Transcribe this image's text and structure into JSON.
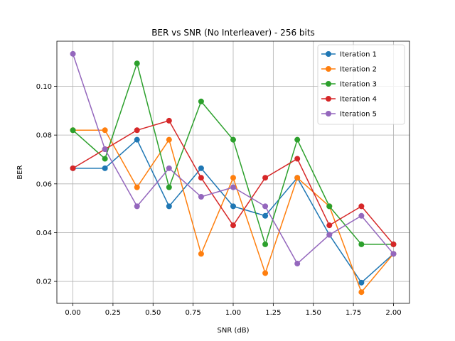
{
  "chart_data": {
    "type": "line",
    "title": "BER vs SNR (No Interleaver) - 256 bits",
    "xlabel": "SNR (dB)",
    "ylabel": "BER",
    "xlim": [
      -0.1,
      2.1
    ],
    "ylim": [
      0.011,
      0.1185
    ],
    "xticks": [
      0.0,
      0.25,
      0.5,
      0.75,
      1.0,
      1.25,
      1.5,
      1.75,
      2.0
    ],
    "xtick_labels": [
      "0.00",
      "0.25",
      "0.50",
      "0.75",
      "1.00",
      "1.25",
      "1.50",
      "1.75",
      "2.00"
    ],
    "yticks": [
      0.02,
      0.04,
      0.06,
      0.08,
      0.1
    ],
    "ytick_labels": [
      "0.02",
      "0.04",
      "0.06",
      "0.08",
      "0.10"
    ],
    "grid": true,
    "legend_position": "top-right",
    "x": [
      0.0,
      0.2,
      0.4,
      0.6,
      0.8,
      1.0,
      1.2,
      1.4,
      1.6,
      1.8,
      2.0
    ],
    "series": [
      {
        "name": "Iteration 1",
        "color": "#1f77b4",
        "values": [
          0.0664,
          0.0664,
          0.0781,
          0.0508,
          0.0664,
          0.0508,
          0.0469,
          0.0625,
          0.0391,
          0.0195,
          0.0313
        ]
      },
      {
        "name": "Iteration 2",
        "color": "#ff7f0e",
        "values": [
          0.082,
          0.082,
          0.0586,
          0.0781,
          0.0313,
          0.0625,
          0.0234,
          0.0625,
          0.0508,
          0.0156,
          0.0313
        ]
      },
      {
        "name": "Iteration 3",
        "color": "#2ca02c",
        "values": [
          0.082,
          0.0703,
          0.1094,
          0.0586,
          0.0938,
          0.0781,
          0.0352,
          0.0781,
          0.0508,
          0.0352,
          0.0352
        ]
      },
      {
        "name": "Iteration 4",
        "color": "#d62728",
        "values": [
          0.0664,
          0.0742,
          0.082,
          0.0859,
          0.0625,
          0.043,
          0.0625,
          0.0703,
          0.043,
          0.0508,
          0.0352
        ]
      },
      {
        "name": "Iteration 5",
        "color": "#9467bd",
        "values": [
          0.1133,
          0.0742,
          0.0508,
          0.0664,
          0.0547,
          0.0586,
          0.0508,
          0.0273,
          0.0391,
          0.0469,
          0.0313
        ]
      }
    ]
  }
}
